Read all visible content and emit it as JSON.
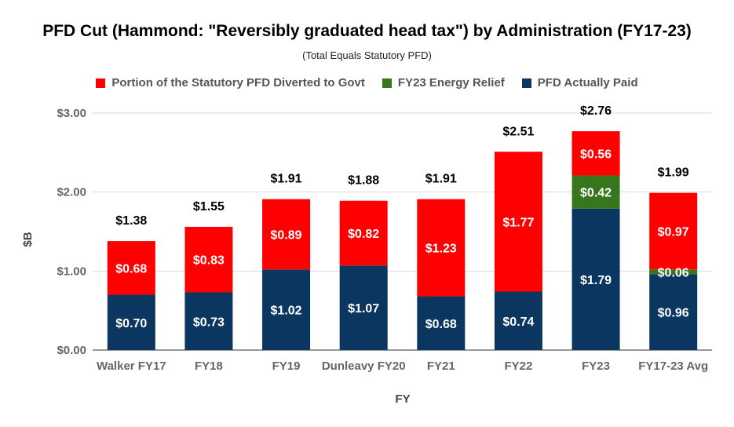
{
  "chart_data": {
    "type": "bar",
    "stacked": true,
    "title": "PFD Cut (Hammond: \"Reversibly graduated head tax\") by Administration (FY17-23)",
    "subtitle": "(Total Equals Statutory PFD)",
    "xlabel": "FY",
    "ylabel": "$B",
    "ylim": [
      0,
      3
    ],
    "yticks": [
      0,
      1,
      2,
      3
    ],
    "ytick_labels": [
      "$0.00",
      "$1.00",
      "$2.00",
      "$3.00"
    ],
    "grid": true,
    "legend_position": "top",
    "categories": [
      "Walker FY17",
      "FY18",
      "FY19",
      "Dunleavy FY20",
      "FY21",
      "FY22",
      "FY23",
      "FY17-23 Avg"
    ],
    "series": [
      {
        "name": "PFD Actually Paid",
        "color": "#0b3660",
        "values": [
          0.7,
          0.73,
          1.02,
          1.07,
          0.68,
          0.74,
          1.79,
          0.96
        ],
        "labels": [
          "$0.70",
          "$0.73",
          "$1.02",
          "$1.07",
          "$0.68",
          "$0.74",
          "$1.79",
          "$0.96"
        ]
      },
      {
        "name": "FY23 Energy Relief",
        "color": "#38761d",
        "values": [
          0,
          0,
          0,
          0,
          0,
          0,
          0.42,
          0.06
        ],
        "labels": [
          "",
          "",
          "",
          "",
          "",
          "",
          "$0.42",
          "$0.06"
        ]
      },
      {
        "name": "Portion of the Statutory PFD Diverted to Govt",
        "color": "#ff0000",
        "values": [
          0.68,
          0.83,
          0.89,
          0.82,
          1.23,
          1.77,
          0.56,
          0.97
        ],
        "labels": [
          "$0.68",
          "$0.83",
          "$0.89",
          "$0.82",
          "$1.23",
          "$1.77",
          "$0.56",
          "$0.97"
        ]
      }
    ],
    "totals": [
      "$1.38",
      "$1.55",
      "$1.91",
      "$1.88",
      "$1.91",
      "$2.51",
      "$2.76",
      "$1.99"
    ],
    "legend": [
      {
        "name": "Portion of the Statutory PFD Diverted to Govt",
        "color": "#ff0000"
      },
      {
        "name": "FY23 Energy Relief",
        "color": "#38761d"
      },
      {
        "name": "PFD Actually Paid",
        "color": "#0b3660"
      }
    ]
  }
}
